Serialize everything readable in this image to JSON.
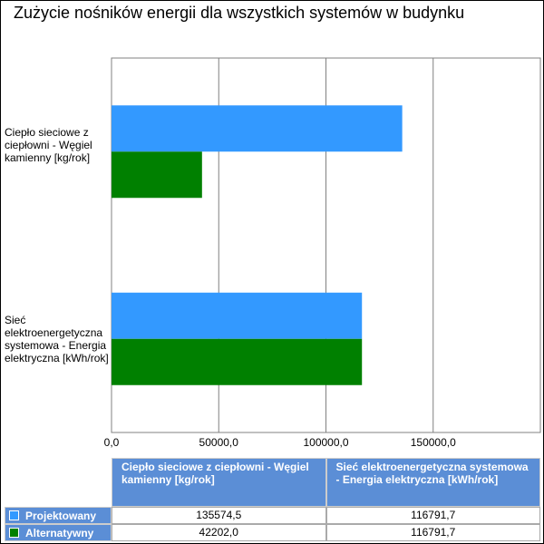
{
  "chart_data": {
    "type": "hbar",
    "title": "Zużycie nośników energii dla wszystkich systemów w budynku",
    "categories": [
      "Ciepło sieciowe z ciepłowni - Węgiel kamienny [kg/rok]",
      "Sieć elektroenergetyczna systemowa - Energia elektryczna [kWh/rok]"
    ],
    "series": [
      {
        "name": "Projektowany",
        "color": "#3399ff",
        "values": [
          135574.5,
          116791.7
        ],
        "value_labels": [
          "135574,5",
          "116791,7"
        ]
      },
      {
        "name": "Alternatywny",
        "color": "#008000",
        "values": [
          42202.0,
          116791.7
        ],
        "value_labels": [
          "42202,0",
          "116791,7"
        ]
      }
    ],
    "xlim": [
      0,
      200000
    ],
    "xticks": [
      {
        "value": 0,
        "label": "0,0"
      },
      {
        "value": 50000,
        "label": "50000,0"
      },
      {
        "value": 100000,
        "label": "100000,0"
      },
      {
        "value": 150000,
        "label": "150000,0"
      }
    ],
    "grid": true
  }
}
